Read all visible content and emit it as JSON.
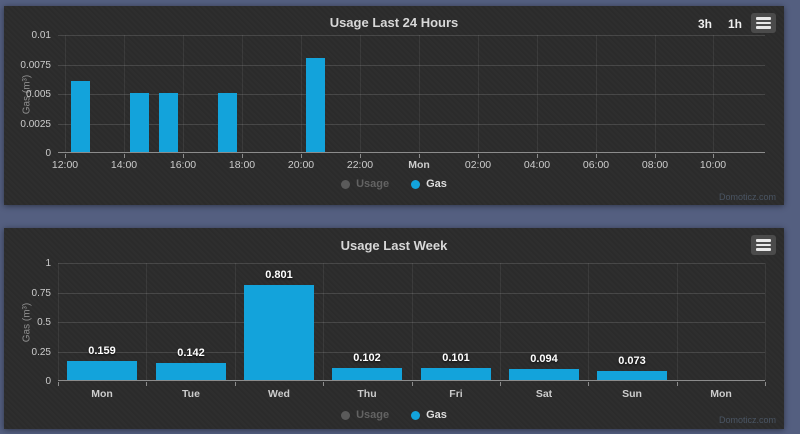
{
  "controls": {
    "range_buttons": [
      "3h",
      "1h"
    ]
  },
  "credits": "Domoticz.com",
  "colors": {
    "bar": "#13a3db",
    "page_bg": "#545f80",
    "panel_bg": "#2c2c2c",
    "title_text": "#d8d8d8",
    "tick_text": "#cccccc",
    "disabled_legend": "#636363"
  },
  "chart_data": [
    {
      "type": "bar",
      "title": "Usage Last 24 Hours",
      "ylabel": "Gas (m³)",
      "ylim": [
        0,
        0.01
      ],
      "grid": true,
      "legend_position": "bottom-center",
      "yticks": [
        {
          "value": 0,
          "label": "0"
        },
        {
          "value": 0.0025,
          "label": "0.0025"
        },
        {
          "value": 0.005,
          "label": "0.005"
        },
        {
          "value": 0.0075,
          "label": "0.0075"
        },
        {
          "value": 0.01,
          "label": "0.01"
        }
      ],
      "x_axis": {
        "type": "datetime",
        "min_hour": 11.75,
        "max_hour": 35.75,
        "ticks": [
          {
            "hour": 12,
            "label": "12:00",
            "bold": false
          },
          {
            "hour": 14,
            "label": "14:00",
            "bold": false
          },
          {
            "hour": 16,
            "label": "16:00",
            "bold": false
          },
          {
            "hour": 18,
            "label": "18:00",
            "bold": false
          },
          {
            "hour": 20,
            "label": "20:00",
            "bold": false
          },
          {
            "hour": 22,
            "label": "22:00",
            "bold": false
          },
          {
            "hour": 24,
            "label": "Mon",
            "bold": true
          },
          {
            "hour": 26,
            "label": "02:00",
            "bold": false
          },
          {
            "hour": 28,
            "label": "04:00",
            "bold": false
          },
          {
            "hour": 30,
            "label": "06:00",
            "bold": false
          },
          {
            "hour": 32,
            "label": "08:00",
            "bold": false
          },
          {
            "hour": 34,
            "label": "10:00",
            "bold": false
          }
        ]
      },
      "series": [
        {
          "name": "Gas",
          "points": [
            {
              "start_hour": 12,
              "value": 0.006
            },
            {
              "start_hour": 14,
              "value": 0.005
            },
            {
              "start_hour": 15,
              "value": 0.005
            },
            {
              "start_hour": 17,
              "value": 0.005
            },
            {
              "start_hour": 20,
              "value": 0.008
            }
          ]
        }
      ],
      "legend": [
        {
          "label": "Usage",
          "enabled": false
        },
        {
          "label": "Gas",
          "enabled": true
        }
      ]
    },
    {
      "type": "bar",
      "title": "Usage Last Week",
      "ylabel": "Gas (m³)",
      "ylim": [
        0,
        1
      ],
      "grid": true,
      "legend_position": "bottom-center",
      "yticks": [
        {
          "value": 0,
          "label": "0"
        },
        {
          "value": 0.25,
          "label": "0.25"
        },
        {
          "value": 0.5,
          "label": "0.5"
        },
        {
          "value": 0.75,
          "label": "0.75"
        },
        {
          "value": 1,
          "label": "1"
        }
      ],
      "categories": [
        "Mon",
        "Tue",
        "Wed",
        "Thu",
        "Fri",
        "Sat",
        "Sun",
        "Mon"
      ],
      "series": [
        {
          "name": "Gas",
          "values": [
            0.159,
            0.142,
            0.801,
            0.102,
            0.101,
            0.094,
            0.073,
            null
          ],
          "data_labels": [
            "0.159",
            "0.142",
            "0.801",
            "0.102",
            "0.101",
            "0.094",
            "0.073"
          ]
        }
      ],
      "legend": [
        {
          "label": "Usage",
          "enabled": false
        },
        {
          "label": "Gas",
          "enabled": true
        }
      ]
    }
  ]
}
